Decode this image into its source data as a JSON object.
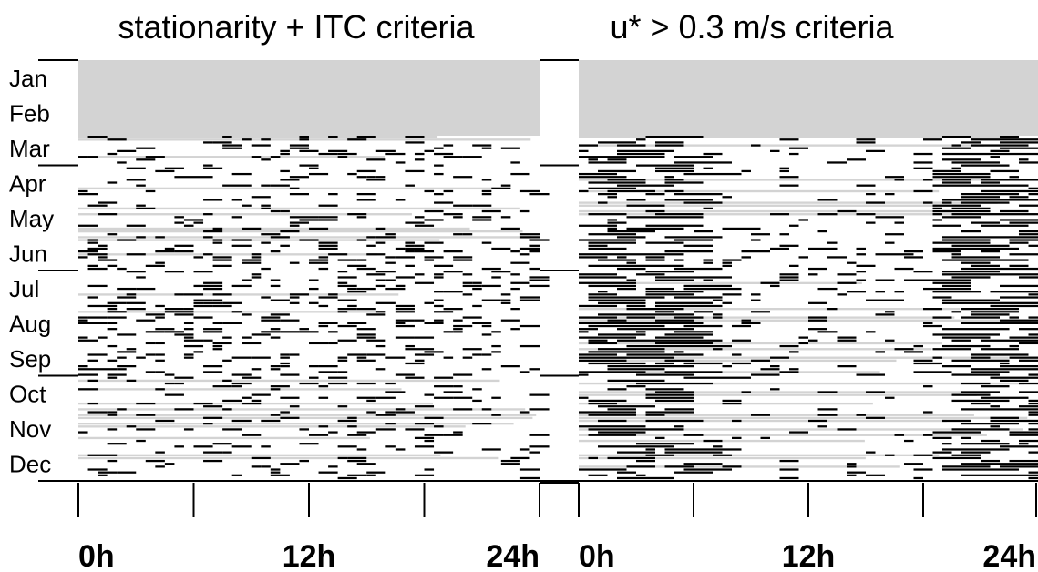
{
  "chart_data": [
    {
      "type": "heatmap",
      "title": "stationarity + ITC criteria",
      "y_categories": [
        "Jan",
        "Feb",
        "Mar",
        "Apr",
        "May",
        "Jun",
        "Jul",
        "Aug",
        "Sep",
        "Oct",
        "Nov",
        "Dec"
      ],
      "x_ticks": [
        "0h",
        "12h",
        "24h"
      ],
      "x_range": [
        0,
        24
      ],
      "no_data_months": [
        "Jan",
        "Feb"
      ],
      "legend": "none",
      "grid": false,
      "colors": {
        "no_data": "#d3d3d3",
        "accepted": "#ffffff",
        "rejected": "#000000"
      }
    },
    {
      "type": "heatmap",
      "title": "u* > 0.3 m/s criteria",
      "y_categories": [
        "Jan",
        "Feb",
        "Mar",
        "Apr",
        "May",
        "Jun",
        "Jul",
        "Aug",
        "Sep",
        "Oct",
        "Nov",
        "Dec"
      ],
      "x_ticks": [
        "0h",
        "12h",
        "24h"
      ],
      "x_range": [
        0,
        24
      ],
      "no_data_months": [
        "Jan",
        "Feb"
      ],
      "legend": "none",
      "grid": false,
      "colors": {
        "no_data": "#d3d3d3",
        "accepted": "#ffffff",
        "rejected": "#000000"
      }
    }
  ]
}
